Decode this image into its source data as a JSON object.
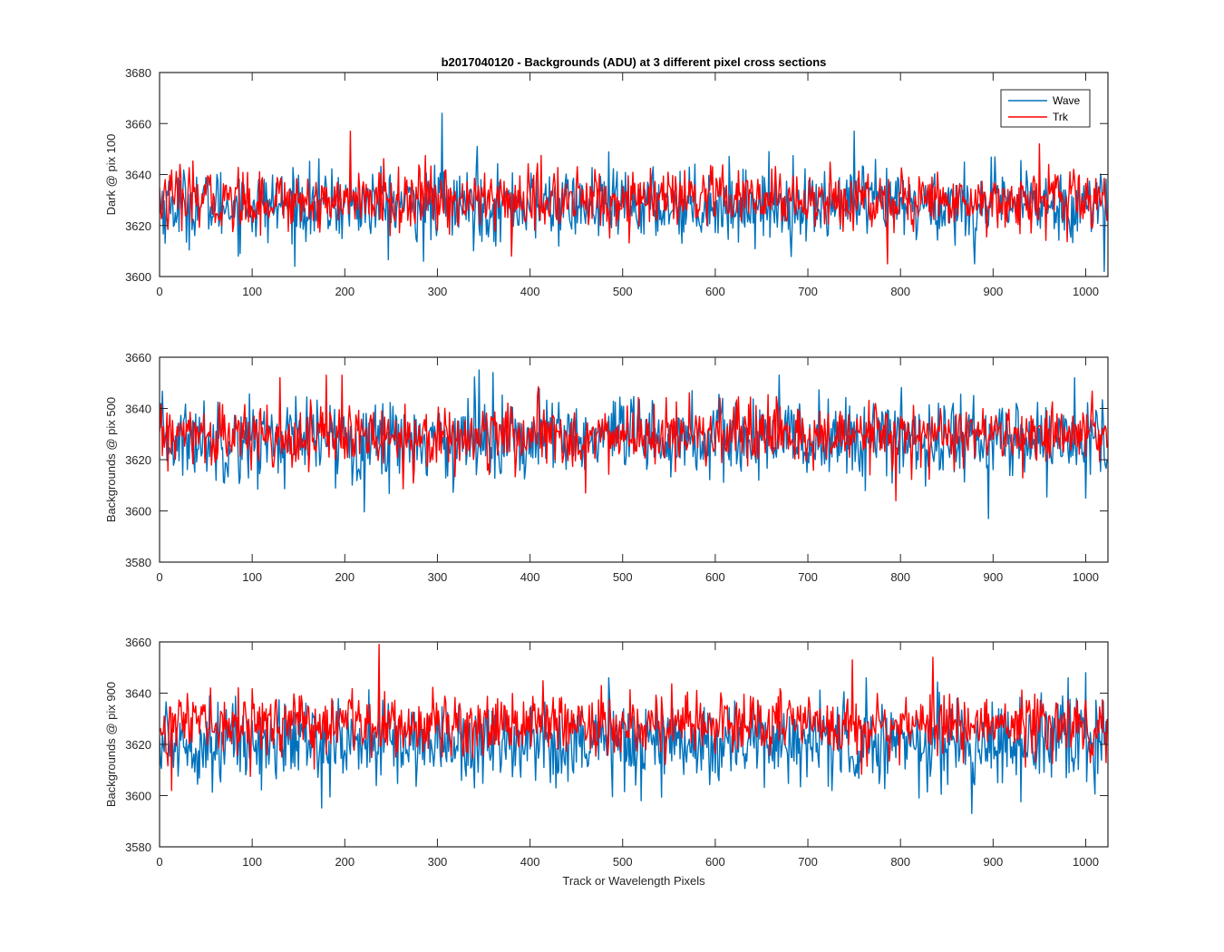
{
  "figure": {
    "title": "b2017040120 - Backgrounds (ADU) at 3 different pixel cross sections",
    "xlabel": "Track or Wavelength Pixels"
  },
  "colors": {
    "wave": "#0072BD",
    "trk": "#FF0000",
    "axes": "#262626",
    "background": "#ffffff"
  },
  "chart_data": [
    {
      "type": "line",
      "ylabel": "Dark @ pix 100",
      "xlim": [
        0,
        1024
      ],
      "ylim": [
        3600,
        3680
      ],
      "xticks": [
        0,
        100,
        200,
        300,
        400,
        500,
        600,
        700,
        800,
        900,
        1000
      ],
      "yticks": [
        3600,
        3620,
        3640,
        3660,
        3680
      ],
      "legend": {
        "location": "top-right",
        "entries": [
          "Wave",
          "Trk"
        ]
      },
      "series": [
        {
          "name": "Wave",
          "color": "#0072BD",
          "mean": 3628,
          "noise_sd": 7,
          "range": [
            3602,
            3664
          ],
          "n_points": 1024,
          "spikes": [
            [
              305,
              3664
            ],
            [
              343,
              3651
            ],
            [
              750,
              3657
            ],
            [
              1020,
              3602
            ],
            [
              880,
              3605
            ],
            [
              285,
              3606
            ]
          ]
        },
        {
          "name": "Trk",
          "color": "#FF0000",
          "mean": 3630,
          "noise_sd": 6,
          "range": [
            3605,
            3657
          ],
          "n_points": 1024,
          "spikes": [
            [
              206,
              3657
            ],
            [
              950,
              3652
            ],
            [
              786,
              3605
            ],
            [
              380,
              3608
            ]
          ]
        }
      ]
    },
    {
      "type": "line",
      "ylabel": "Backgrounds @ pix 500",
      "xlim": [
        0,
        1024
      ],
      "ylim": [
        3580,
        3660
      ],
      "xticks": [
        0,
        100,
        200,
        300,
        400,
        500,
        600,
        700,
        800,
        900,
        1000
      ],
      "yticks": [
        3580,
        3600,
        3620,
        3640,
        3660
      ],
      "series": [
        {
          "name": "Wave",
          "color": "#0072BD",
          "mean": 3628,
          "noise_sd": 8,
          "range": [
            3597,
            3655
          ],
          "n_points": 1024,
          "spikes": [
            [
              345,
              3655
            ],
            [
              895,
              3597
            ],
            [
              1000,
              3605
            ],
            [
              360,
              3654
            ]
          ]
        },
        {
          "name": "Trk",
          "color": "#FF0000",
          "mean": 3629,
          "noise_sd": 6,
          "range": [
            3604,
            3653
          ],
          "n_points": 1024,
          "spikes": [
            [
              197,
              3653
            ],
            [
              180,
              3653
            ],
            [
              795,
              3604
            ],
            [
              460,
              3607
            ],
            [
              130,
              3652
            ]
          ]
        }
      ]
    },
    {
      "type": "line",
      "ylabel": "Backgrounds @ pix 900",
      "xlim": [
        0,
        1024
      ],
      "ylim": [
        3580,
        3660
      ],
      "xticks": [
        0,
        100,
        200,
        300,
        400,
        500,
        600,
        700,
        800,
        900,
        1000
      ],
      "yticks": [
        3580,
        3600,
        3620,
        3640,
        3660
      ],
      "series": [
        {
          "name": "Wave",
          "color": "#0072BD",
          "mean": 3621,
          "noise_sd": 8,
          "range": [
            3593,
            3648
          ],
          "n_points": 1024,
          "spikes": [
            [
              877,
              3593
            ],
            [
              520,
              3598
            ],
            [
              1000,
              3648
            ],
            [
              340,
              3603
            ]
          ]
        },
        {
          "name": "Trk",
          "color": "#FF0000",
          "mean": 3628,
          "noise_sd": 6,
          "range": [
            3602,
            3659
          ],
          "n_points": 1024,
          "spikes": [
            [
              237,
              3659
            ],
            [
              13,
              3602
            ],
            [
              835,
              3654
            ],
            [
              748,
              3653
            ]
          ]
        }
      ]
    }
  ]
}
